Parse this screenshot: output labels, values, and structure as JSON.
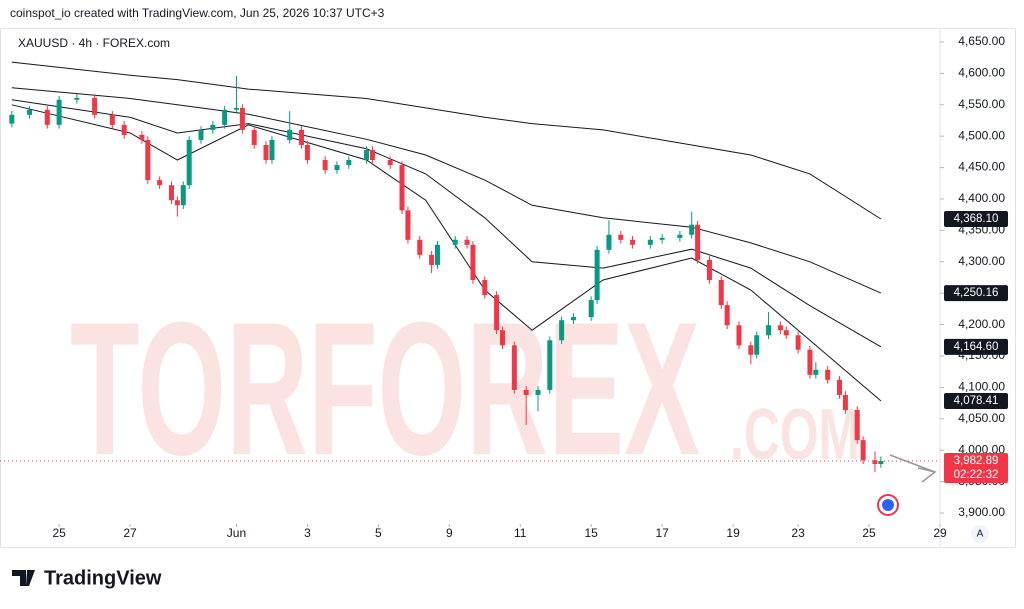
{
  "header": {
    "credit": "coinspot_io created with TradingView.com, Jun 25, 2026 10:37 UTC+3"
  },
  "footer": {
    "brand": "TradingView",
    "scale_button": "A"
  },
  "watermark": {
    "main": "TORFOREX",
    "suffix": ".COM"
  },
  "chart_data": {
    "type": "candlestick",
    "title": "XAUUSD · 4h · FOREX.com",
    "xlim": [
      -2,
      157
    ],
    "ylim": [
      3870,
      4670
    ],
    "xticks": [
      {
        "value": 8,
        "label": "25"
      },
      {
        "value": 20,
        "label": "27"
      },
      {
        "value": 38,
        "label": "Jun"
      },
      {
        "value": 50,
        "label": "3"
      },
      {
        "value": 62,
        "label": "5"
      },
      {
        "value": 74,
        "label": "9"
      },
      {
        "value": 86,
        "label": "11"
      },
      {
        "value": 98,
        "label": "15"
      },
      {
        "value": 110,
        "label": "17"
      },
      {
        "value": 122,
        "label": "19"
      },
      {
        "value": 133,
        "label": "23"
      },
      {
        "value": 145,
        "label": "25"
      },
      {
        "value": 157,
        "label": "29"
      }
    ],
    "yticks": [
      {
        "value": 3900,
        "label": "3,900.00"
      },
      {
        "value": 3950,
        "label": "3,950.00"
      },
      {
        "value": 4000,
        "label": "4,000.00"
      },
      {
        "value": 4050,
        "label": "4,050.00"
      },
      {
        "value": 4100,
        "label": "4,100.00"
      },
      {
        "value": 4150,
        "label": "4,150.00"
      },
      {
        "value": 4200,
        "label": "4,200.00"
      },
      {
        "value": 4250,
        "label": "4,250.00"
      },
      {
        "value": 4300,
        "label": "4,300.00"
      },
      {
        "value": 4350,
        "label": "4,350.00"
      },
      {
        "value": 4400,
        "label": "4,400.00"
      },
      {
        "value": 4450,
        "label": "4,450.00"
      },
      {
        "value": 4500,
        "label": "4,500.00"
      },
      {
        "value": 4550,
        "label": "4,550.00"
      },
      {
        "value": 4600,
        "label": "4,600.00"
      },
      {
        "value": 4650,
        "label": "4,650.00"
      }
    ],
    "candles": {
      "up_color": "#089981",
      "down_color": "#f23645",
      "last_label": "3,982.89",
      "countdown": "02:22:32",
      "x": [
        0,
        3,
        6,
        8,
        11,
        14,
        17,
        19,
        22,
        23,
        25,
        27,
        28,
        29,
        30,
        32,
        34,
        36,
        38,
        39,
        41,
        43,
        44,
        47,
        49,
        50,
        53,
        55,
        57,
        60,
        61,
        64,
        66,
        67,
        69,
        71,
        72,
        75,
        77,
        78,
        80,
        82,
        83,
        85,
        87,
        89,
        91,
        93,
        95,
        98,
        99,
        101,
        103,
        105,
        108,
        110,
        113,
        115,
        116,
        118,
        120,
        121,
        123,
        125,
        126,
        128,
        130,
        131,
        133,
        135,
        136,
        138,
        140,
        141,
        143,
        144,
        146,
        147
      ],
      "open": [
        4520,
        4534,
        4542,
        4518,
        4558,
        4561,
        4534,
        4518,
        4502,
        4494,
        4430,
        4422,
        4398,
        4390,
        4422,
        4494,
        4510,
        4518,
        4542,
        4545,
        4510,
        4486,
        4462,
        4494,
        4510,
        4486,
        4462,
        4446,
        4454,
        4462,
        4478,
        4462,
        4454,
        4382,
        4335,
        4311,
        4295,
        4327,
        4335,
        4327,
        4271,
        4247,
        4191,
        4167,
        4096,
        4088,
        4096,
        4175,
        4207,
        4212,
        4239,
        4319,
        4343,
        4335,
        4327,
        4335,
        4338,
        4343,
        4359,
        4303,
        4271,
        4231,
        4199,
        4167,
        4152,
        4183,
        4199,
        4191,
        4183,
        4160,
        4120,
        4128,
        4112,
        4088,
        4064,
        4016,
        3984,
        3978
      ],
      "high": [
        4540,
        4548,
        4548,
        4564,
        4567,
        4567,
        4540,
        4524,
        4508,
        4500,
        4436,
        4428,
        4404,
        4428,
        4500,
        4516,
        4524,
        4548,
        4596,
        4551,
        4516,
        4492,
        4500,
        4540,
        4516,
        4492,
        4468,
        4460,
        4468,
        4484,
        4484,
        4468,
        4460,
        4388,
        4341,
        4317,
        4333,
        4341,
        4341,
        4333,
        4277,
        4253,
        4197,
        4173,
        4102,
        4102,
        4181,
        4213,
        4218,
        4245,
        4325,
        4366,
        4349,
        4341,
        4341,
        4344,
        4349,
        4380,
        4365,
        4309,
        4277,
        4237,
        4205,
        4173,
        4189,
        4220,
        4205,
        4197,
        4189,
        4166,
        4140,
        4134,
        4118,
        4094,
        4070,
        4022,
        3998,
        3990
      ],
      "low": [
        4514,
        4528,
        4512,
        4512,
        4552,
        4528,
        4512,
        4496,
        4488,
        4424,
        4416,
        4392,
        4372,
        4384,
        4416,
        4488,
        4504,
        4512,
        4536,
        4504,
        4480,
        4456,
        4456,
        4488,
        4480,
        4456,
        4440,
        4440,
        4448,
        4456,
        4456,
        4448,
        4376,
        4329,
        4305,
        4282,
        4289,
        4321,
        4321,
        4265,
        4241,
        4185,
        4161,
        4090,
        4040,
        4062,
        4090,
        4169,
        4201,
        4206,
        4233,
        4313,
        4329,
        4321,
        4321,
        4329,
        4332,
        4337,
        4297,
        4265,
        4225,
        4193,
        4161,
        4137,
        4146,
        4177,
        4185,
        4177,
        4154,
        4114,
        4114,
        4106,
        4082,
        4058,
        4010,
        3978,
        3965,
        3972
      ],
      "close": [
        4534,
        4542,
        4518,
        4558,
        4561,
        4534,
        4518,
        4502,
        4494,
        4430,
        4422,
        4398,
        4390,
        4422,
        4494,
        4510,
        4518,
        4542,
        4545,
        4510,
        4486,
        4462,
        4494,
        4510,
        4486,
        4462,
        4446,
        4454,
        4462,
        4478,
        4462,
        4454,
        4382,
        4335,
        4311,
        4295,
        4327,
        4335,
        4327,
        4271,
        4247,
        4191,
        4167,
        4096,
        4088,
        4096,
        4175,
        4207,
        4212,
        4239,
        4319,
        4343,
        4335,
        4327,
        4335,
        4338,
        4343,
        4359,
        4303,
        4271,
        4231,
        4199,
        4167,
        4152,
        4183,
        4199,
        4191,
        4183,
        4160,
        4120,
        4128,
        4112,
        4088,
        4064,
        4016,
        3984,
        3978,
        3982.89
      ]
    },
    "series": [
      {
        "color": "#131722",
        "last_label": "4,368.10",
        "x": [
          0,
          20,
          28,
          40,
          60,
          70,
          80,
          88,
          100,
          115,
          125,
          135,
          147
        ],
        "values": [
          4618,
          4597,
          4590,
          4575,
          4560,
          4545,
          4530,
          4520,
          4510,
          4486,
          4470,
          4440,
          4368.1
        ]
      },
      {
        "color": "#131722",
        "last_label": "4,250.16",
        "x": [
          0,
          20,
          28,
          40,
          60,
          70,
          80,
          88,
          100,
          115,
          125,
          135,
          147
        ],
        "values": [
          4577,
          4560,
          4550,
          4535,
          4495,
          4470,
          4430,
          4390,
          4370,
          4355,
          4330,
          4300,
          4250.16
        ]
      },
      {
        "color": "#131722",
        "last_label": "4,164.60",
        "x": [
          0,
          20,
          28,
          40,
          60,
          70,
          80,
          88,
          100,
          115,
          125,
          135,
          147
        ],
        "values": [
          4558,
          4530,
          4505,
          4520,
          4480,
          4440,
          4370,
          4300,
          4290,
          4320,
          4290,
          4230,
          4164.6
        ]
      },
      {
        "color": "#131722",
        "last_label": "4,078.41",
        "x": [
          0,
          20,
          28,
          40,
          60,
          70,
          80,
          88,
          100,
          115,
          125,
          135,
          147
        ],
        "values": [
          4550,
          4505,
          4462,
          4518,
          4462,
          4398,
          4255,
          4191,
          4271,
          4306,
          4255,
          4175,
          4078.41
        ]
      }
    ]
  }
}
